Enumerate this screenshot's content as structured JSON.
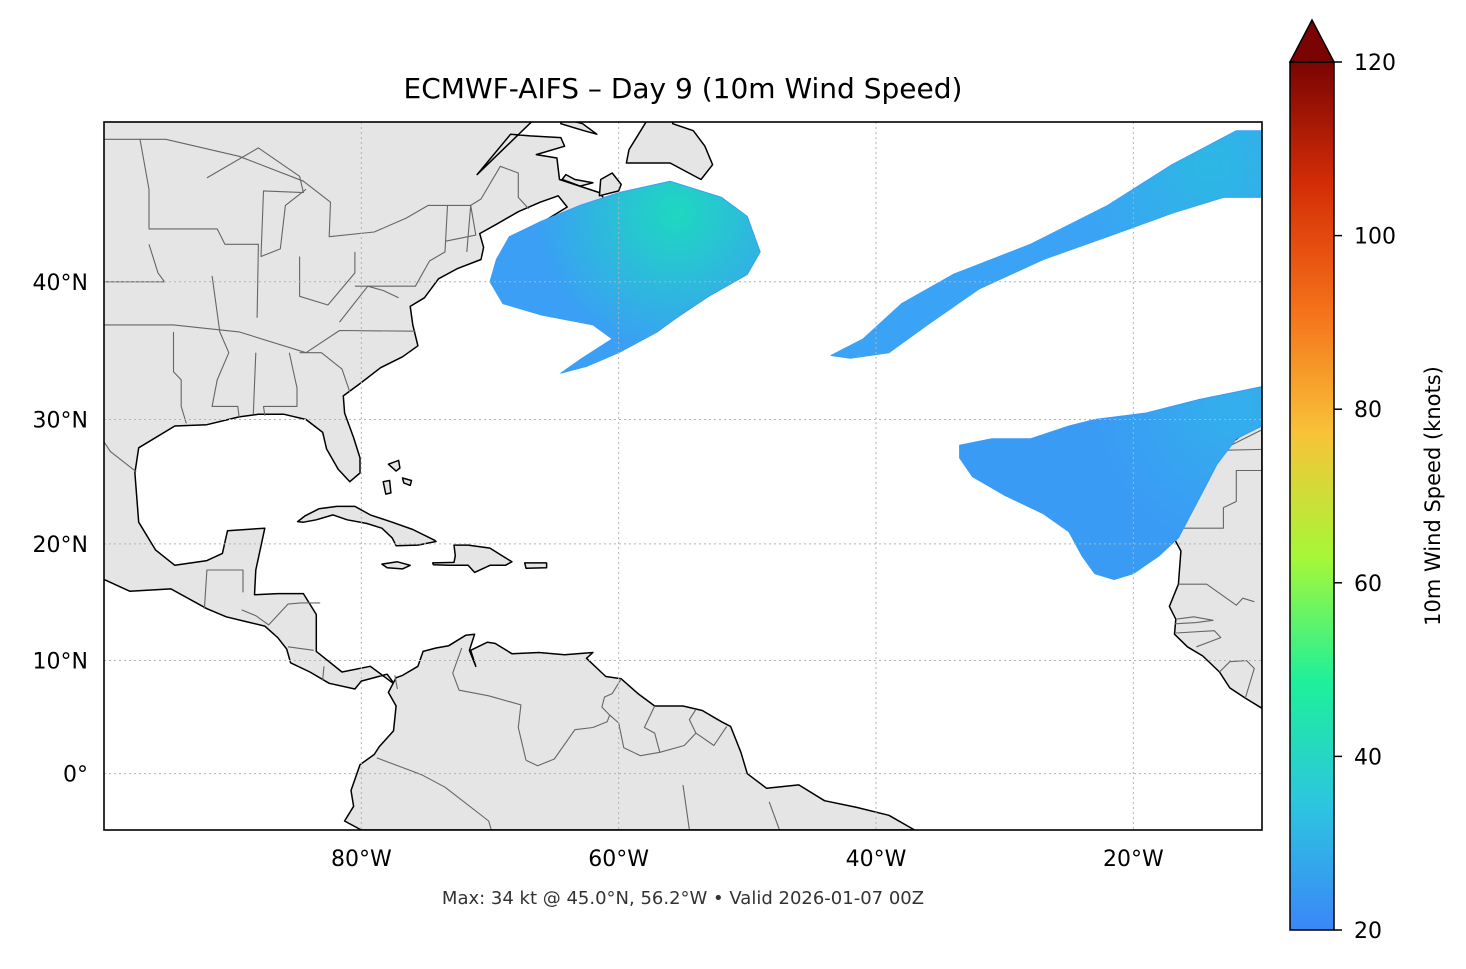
{
  "title": "ECMWF-AIFS – Day 9 (10m Wind Speed)",
  "footer": "Max: 34 kt @ 45.0°N, 56.2°W • Valid 2026-01-07 00Z",
  "map": {
    "lon_range": [
      -100,
      -10
    ],
    "lat_range": [
      -5,
      50
    ],
    "lon_ticks": [
      {
        "value": -80,
        "label": "80°W"
      },
      {
        "value": -60,
        "label": "60°W"
      },
      {
        "value": -40,
        "label": "40°W"
      },
      {
        "value": -20,
        "label": "20°W"
      }
    ],
    "lat_ticks": [
      {
        "value": 0,
        "label": "0°"
      },
      {
        "value": 10,
        "label": "10°N"
      },
      {
        "value": 20,
        "label": "20°N"
      },
      {
        "value": 30,
        "label": "30°N"
      },
      {
        "value": 40,
        "label": "40°N"
      }
    ],
    "gridlines": true,
    "land_color": "#e5e5e5",
    "ocean_color": "#ffffff",
    "coast_color": "#000000",
    "border_color": "#666666"
  },
  "wind_regions": [
    {
      "name": "nw-atlantic-gale",
      "color": "#3a9ff5",
      "peak_color": "#1ed8c0",
      "outline": [
        [
          -68.5,
          43
        ],
        [
          -66,
          44
        ],
        [
          -63,
          45
        ],
        [
          -60,
          45.8
        ],
        [
          -56,
          46.5
        ],
        [
          -52,
          45.5
        ],
        [
          -50,
          44.3
        ],
        [
          -49,
          42
        ],
        [
          -50,
          40.5
        ],
        [
          -53,
          39
        ],
        [
          -55.5,
          37.5
        ],
        [
          -57,
          36.5
        ],
        [
          -59,
          35.5
        ],
        [
          -60,
          35
        ],
        [
          -62.5,
          34
        ],
        [
          -64.5,
          33.5
        ],
        [
          -63,
          34.5
        ],
        [
          -60.5,
          36
        ],
        [
          -62,
          37
        ],
        [
          -66,
          37.7
        ],
        [
          -69,
          38.5
        ],
        [
          -70,
          40
        ],
        [
          -69.5,
          41.5
        ]
      ],
      "peak": [
        -55.5,
        44.5
      ]
    },
    {
      "name": "central-atlantic-jet",
      "color": "#3aa3f5",
      "peak_color": "#2cb8e4",
      "outline": [
        [
          -43.5,
          34.8
        ],
        [
          -41,
          36
        ],
        [
          -38,
          38.5
        ],
        [
          -34,
          40.5
        ],
        [
          -28,
          42.5
        ],
        [
          -22,
          45
        ],
        [
          -17,
          47.5
        ],
        [
          -12,
          49.5
        ],
        [
          -10,
          49.5
        ],
        [
          -10,
          45.5
        ],
        [
          -13,
          45.5
        ],
        [
          -17,
          44.5
        ],
        [
          -22,
          43
        ],
        [
          -27,
          41.5
        ],
        [
          -32,
          39.5
        ],
        [
          -36,
          37
        ],
        [
          -39,
          35
        ],
        [
          -42,
          34.6
        ]
      ],
      "peak": [
        -14,
        47.5
      ]
    },
    {
      "name": "canary-region",
      "color": "#3a9bf5",
      "peak_color": "#33b0eb",
      "outline": [
        [
          -33.5,
          28
        ],
        [
          -31,
          28.5
        ],
        [
          -28,
          28.5
        ],
        [
          -25,
          29.5
        ],
        [
          -23,
          30
        ],
        [
          -19,
          30.5
        ],
        [
          -15,
          31.5
        ],
        [
          -12.5,
          32
        ],
        [
          -10,
          32.5
        ],
        [
          -10,
          29.5
        ],
        [
          -12,
          28.5
        ],
        [
          -13.5,
          26.5
        ],
        [
          -14.5,
          24.5
        ],
        [
          -15.5,
          22.5
        ],
        [
          -16.5,
          20.5
        ],
        [
          -18,
          19
        ],
        [
          -20,
          17.5
        ],
        [
          -21.5,
          17
        ],
        [
          -23,
          17.5
        ],
        [
          -24,
          19
        ],
        [
          -25,
          21
        ],
        [
          -27,
          22.5
        ],
        [
          -30,
          24
        ],
        [
          -32.5,
          25.5
        ],
        [
          -33.5,
          27
        ]
      ],
      "peak": [
        -12,
        31
      ]
    }
  ],
  "colorbar": {
    "label": "10m Wind Speed (knots)",
    "min": 20,
    "max": 120,
    "extend": "max",
    "ticks": [
      {
        "value": 20,
        "label": "20"
      },
      {
        "value": 40,
        "label": "40"
      },
      {
        "value": 60,
        "label": "60"
      },
      {
        "value": 80,
        "label": "80"
      },
      {
        "value": 100,
        "label": "100"
      },
      {
        "value": 120,
        "label": "120"
      }
    ],
    "stops": [
      "#3b86f8",
      "#2cc5e0",
      "#1ef09a",
      "#a6f737",
      "#f8c338",
      "#f5711a",
      "#d52e06",
      "#7a0403"
    ],
    "extend_color": "#7a0403"
  }
}
